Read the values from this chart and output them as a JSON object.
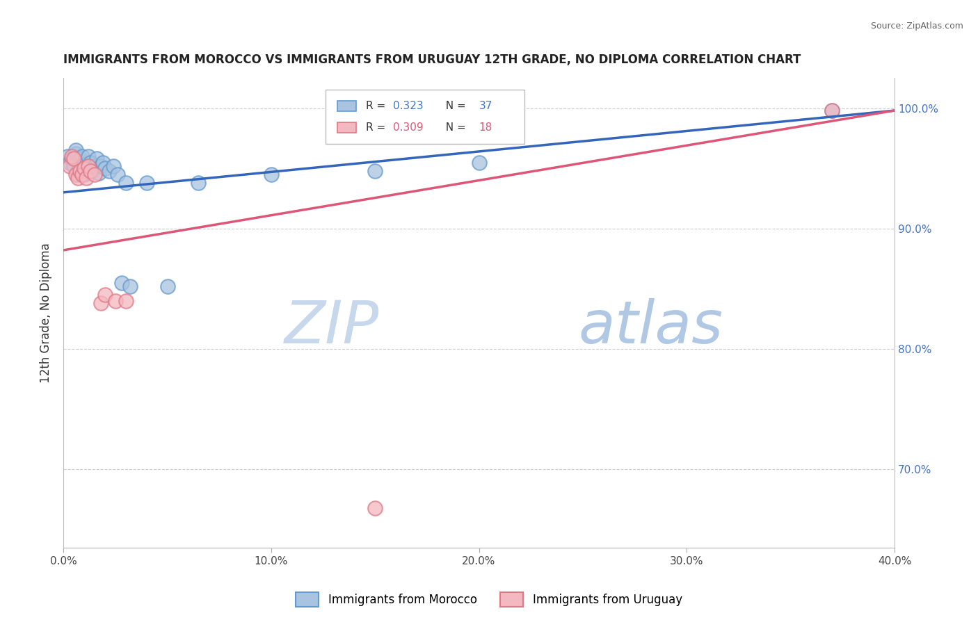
{
  "title": "IMMIGRANTS FROM MOROCCO VS IMMIGRANTS FROM URUGUAY 12TH GRADE, NO DIPLOMA CORRELATION CHART",
  "source": "Source: ZipAtlas.com",
  "xlabel_bottom": "Immigrants from Morocco",
  "xlabel_bottom2": "Immigrants from Uruguay",
  "ylabel": "12th Grade, No Diploma",
  "xlim": [
    0.0,
    0.4
  ],
  "ylim": [
    0.635,
    1.025
  ],
  "yticks": [
    0.7,
    0.8,
    0.9,
    1.0
  ],
  "ytick_labels": [
    "70.0%",
    "80.0%",
    "90.0%",
    "100.0%"
  ],
  "xticks": [
    0.0,
    0.1,
    0.2,
    0.3,
    0.4
  ],
  "xtick_labels": [
    "0.0%",
    "10.0%",
    "20.0%",
    "30.0%",
    "40.0%"
  ],
  "morocco_R": 0.323,
  "morocco_N": 37,
  "uruguay_R": 0.309,
  "uruguay_N": 18,
  "morocco_color": "#a8c4e0",
  "morocco_edge": "#6699cc",
  "uruguay_color": "#f4b8c0",
  "uruguay_edge": "#e07888",
  "morocco_line_color": "#3366bb",
  "uruguay_line_color": "#dd5577",
  "watermark_zip_color": "#c8d8ec",
  "watermark_atlas_color": "#b0c8e4",
  "morocco_x": [
    0.002,
    0.003,
    0.004,
    0.005,
    0.006,
    0.006,
    0.007,
    0.007,
    0.008,
    0.008,
    0.009,
    0.01,
    0.01,
    0.011,
    0.012,
    0.012,
    0.013,
    0.014,
    0.015,
    0.016,
    0.017,
    0.018,
    0.019,
    0.02,
    0.022,
    0.024,
    0.026,
    0.028,
    0.03,
    0.032,
    0.04,
    0.05,
    0.065,
    0.1,
    0.15,
    0.2,
    0.37
  ],
  "morocco_y": [
    0.96,
    0.955,
    0.958,
    0.952,
    0.962,
    0.965,
    0.945,
    0.948,
    0.958,
    0.95,
    0.96,
    0.945,
    0.953,
    0.948,
    0.952,
    0.96,
    0.955,
    0.948,
    0.952,
    0.958,
    0.946,
    0.952,
    0.955,
    0.95,
    0.948,
    0.952,
    0.945,
    0.855,
    0.938,
    0.852,
    0.938,
    0.852,
    0.938,
    0.945,
    0.948,
    0.955,
    0.998
  ],
  "uruguay_x": [
    0.003,
    0.004,
    0.005,
    0.006,
    0.007,
    0.008,
    0.009,
    0.01,
    0.011,
    0.012,
    0.013,
    0.015,
    0.018,
    0.02,
    0.025,
    0.03,
    0.15,
    0.37
  ],
  "uruguay_y": [
    0.952,
    0.96,
    0.958,
    0.945,
    0.942,
    0.948,
    0.945,
    0.95,
    0.942,
    0.952,
    0.948,
    0.945,
    0.838,
    0.845,
    0.84,
    0.84,
    0.668,
    0.998
  ],
  "morocco_trend": [
    0.0,
    0.4,
    0.93,
    0.998
  ],
  "uruguay_trend": [
    0.0,
    0.4,
    0.882,
    0.998
  ]
}
